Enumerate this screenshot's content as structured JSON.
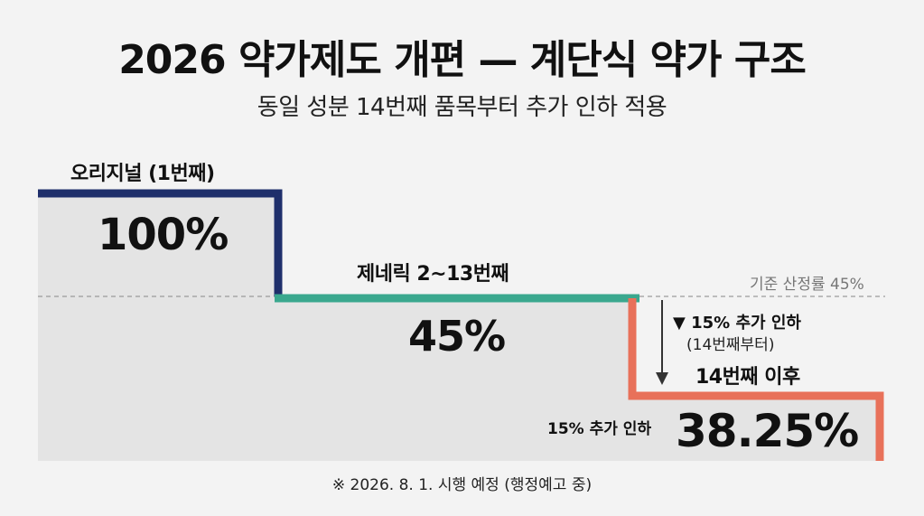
{
  "title": "2026 약가제도 개편 — 계단식 약가 구조",
  "subtitle": "동일 성분 14번째 품목부터 추가 인하 적용",
  "steps": [
    {
      "label": "오리지널 (1번째)",
      "value": "100%",
      "color": "#1f2f6b"
    },
    {
      "label": "제네릭 2~13번째",
      "value": "45%",
      "color": "#3aa88e"
    },
    {
      "label": "14번째 이후",
      "value": "38.25%",
      "color": "#e8715a",
      "side_note": "15% 추가 인하"
    }
  ],
  "reference_line": {
    "label": "기준 산정률 45%"
  },
  "drop_annotation": {
    "line1": "▼ 15% 추가 인하",
    "line2": "(14번째부터)"
  },
  "footnote": "※ 2026. 8. 1. 시행 예정 (행정예고 중)",
  "chart_data": {
    "type": "step",
    "categories": [
      "오리지널 (1번째)",
      "제네릭 2~13번째",
      "14번째 이후"
    ],
    "values": [
      100,
      45,
      38.25
    ],
    "unit": "%",
    "reference": 45
  }
}
